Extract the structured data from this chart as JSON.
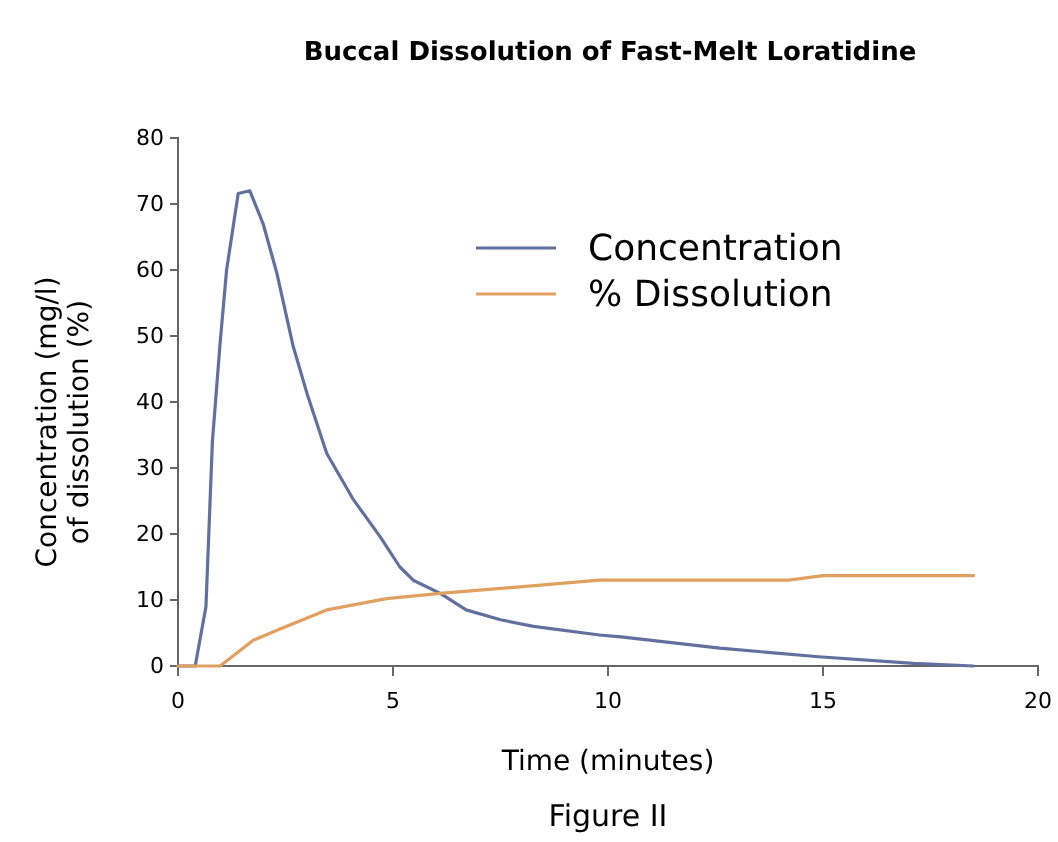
{
  "chart_data": {
    "type": "line",
    "title": "Buccal Dissolution of Fast-Melt Loratidine",
    "xlabel": "Time (minutes)",
    "ylabel": "Concentration (mg/l)\nof dissolution (%)",
    "annotations": [
      "Figure II"
    ],
    "xlim": [
      0,
      20
    ],
    "xticks": [
      0,
      5,
      10,
      15,
      20
    ],
    "ylim": [
      0,
      80
    ],
    "yticks": [
      0,
      10,
      20,
      30,
      40,
      50,
      60,
      70,
      80
    ],
    "grid": false,
    "legend": "right",
    "marker": "none",
    "line_style": "solid",
    "series": [
      {
        "name": "Concentration",
        "color": "#6270a0",
        "x": [
          0,
          0.4,
          0.65,
          0.8,
          0.98,
          1.13,
          1.4,
          1.67,
          1.98,
          2.3,
          2.68,
          3.0,
          3.46,
          4.08,
          4.7,
          5.16,
          5.47,
          6.1,
          6.7,
          7.5,
          8.27,
          9.8,
          10.3,
          12.6,
          14.9,
          17.1,
          18.5
        ],
        "values": [
          0,
          0,
          9,
          34,
          49,
          60,
          71.6,
          72,
          67,
          59.5,
          48.4,
          41.3,
          32.2,
          25.2,
          19.6,
          15,
          13,
          11,
          8.5,
          7,
          6,
          4.7,
          4.4,
          2.7,
          1.4,
          0.4,
          0
        ]
      },
      {
        "name": "% Dissolution",
        "color": "#e0a060",
        "x": [
          0,
          0.98,
          1.75,
          2.33,
          3.46,
          4.85,
          6.1,
          7.95,
          9.8,
          10.3,
          14.2,
          15,
          18.5
        ],
        "values": [
          0,
          0,
          3.9,
          5.5,
          8.5,
          10.2,
          11,
          12,
          13,
          13,
          13,
          13.7,
          13.7
        ]
      }
    ]
  }
}
